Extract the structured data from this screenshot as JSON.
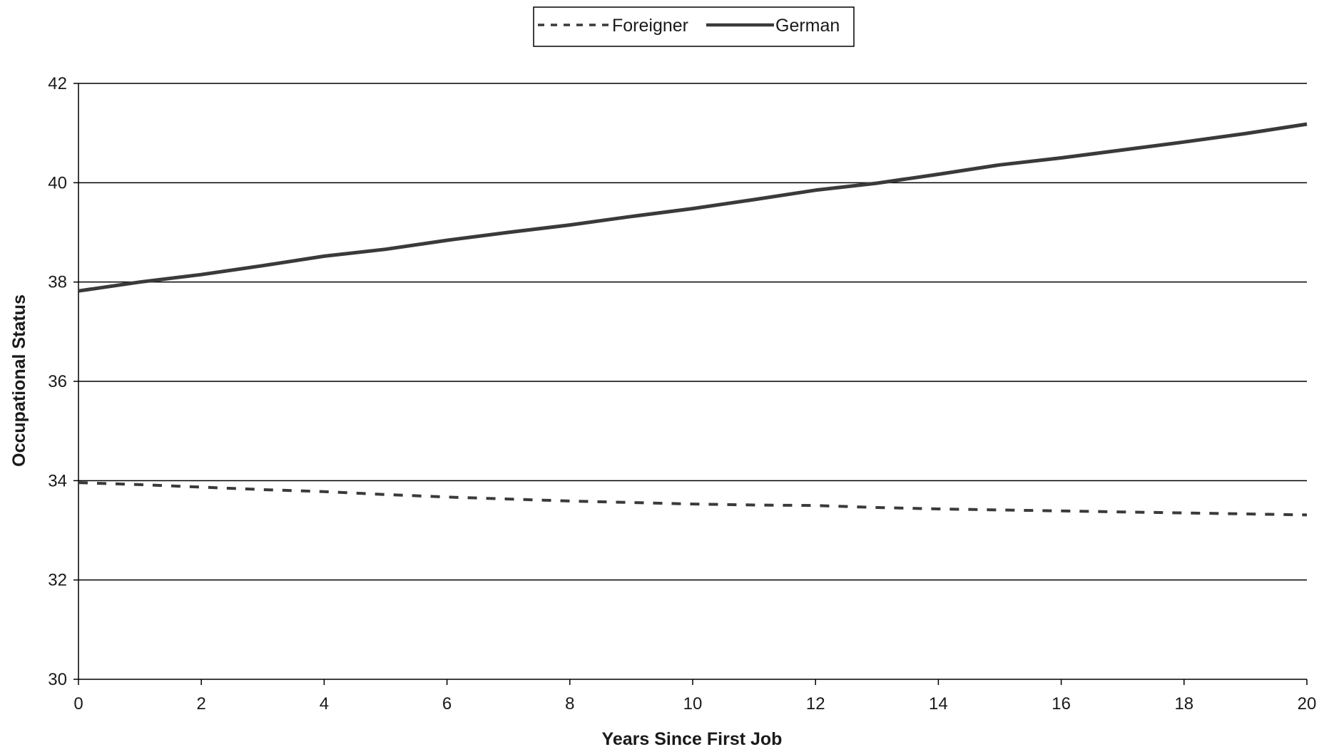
{
  "chart_data": {
    "type": "line",
    "title": "",
    "xlabel": "Years Since First Job",
    "ylabel": "Occupational Status",
    "xlim": [
      0,
      20
    ],
    "ylim": [
      30,
      42
    ],
    "x_ticks": [
      "0",
      "2",
      "4",
      "6",
      "8",
      "10",
      "12",
      "14",
      "16",
      "18",
      "20"
    ],
    "y_ticks": [
      "30",
      "32",
      "34",
      "36",
      "38",
      "40",
      "42"
    ],
    "grid": "horizontal",
    "legend_position": "top-center",
    "x": [
      0,
      1,
      2,
      3,
      4,
      5,
      6,
      7,
      8,
      9,
      10,
      11,
      12,
      13,
      14,
      15,
      16,
      17,
      18,
      19,
      20
    ],
    "series": [
      {
        "name": "Foreigner",
        "style": "dashed",
        "color": "#3a3a3a",
        "values": [
          33.96,
          33.92,
          33.87,
          33.82,
          33.78,
          33.72,
          33.67,
          33.63,
          33.59,
          33.56,
          33.53,
          33.51,
          33.5,
          33.46,
          33.43,
          33.41,
          33.39,
          33.37,
          33.35,
          33.33,
          33.31
        ]
      },
      {
        "name": "German",
        "style": "solid",
        "color": "#3a3a3a",
        "values": [
          37.82,
          38.0,
          38.15,
          38.33,
          38.52,
          38.66,
          38.84,
          39.0,
          39.15,
          39.32,
          39.48,
          39.66,
          39.85,
          39.99,
          40.17,
          40.36,
          40.5,
          40.66,
          40.82,
          40.99,
          41.18
        ]
      }
    ]
  }
}
